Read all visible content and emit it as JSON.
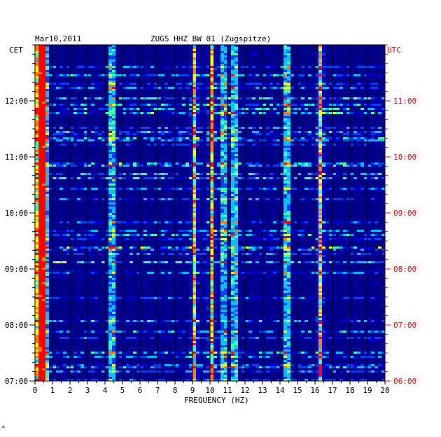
{
  "header": {
    "date": "Mar10,2011",
    "station": "ZUGS HHZ BW 01 (Zugspitze)"
  },
  "chart_data": {
    "type": "heatmap",
    "title": "ZUGS HHZ BW 01 (Zugspitze)",
    "xlabel": "FREQUENCY (HZ)",
    "xlim": [
      0,
      20
    ],
    "x_ticks": [
      "0",
      "1",
      "2",
      "3",
      "4",
      "5",
      "6",
      "7",
      "8",
      "9",
      "10",
      "11",
      "12",
      "13",
      "14",
      "15",
      "16",
      "17",
      "18",
      "19",
      "20"
    ],
    "left_axis": {
      "label": "CET",
      "ticks": [
        "12:00",
        "11:00",
        "10:00",
        "09:00",
        "08:00",
        "07:00"
      ],
      "color": "#000000"
    },
    "right_axis": {
      "label": "UTC",
      "ticks": [
        "11:00",
        "10:00",
        "09:00",
        "08:00",
        "07:00",
        "06:00"
      ],
      "color": "#e00000"
    },
    "time_range_cet": [
      "07:00",
      "13:00"
    ],
    "colormap": [
      "#00007a",
      "#0000d0",
      "#0040ff",
      "#00c0ff",
      "#40ffb0",
      "#ffff00",
      "#ff8000",
      "#ff0000"
    ],
    "background_color": "#00008a",
    "vertical_gridlines": true,
    "dominant_frequency_bands_hz": [
      0.2,
      0.5,
      4.3,
      9.0,
      10.0,
      10.7,
      11.3,
      14.3,
      16.2
    ],
    "footer_mark": "*"
  }
}
